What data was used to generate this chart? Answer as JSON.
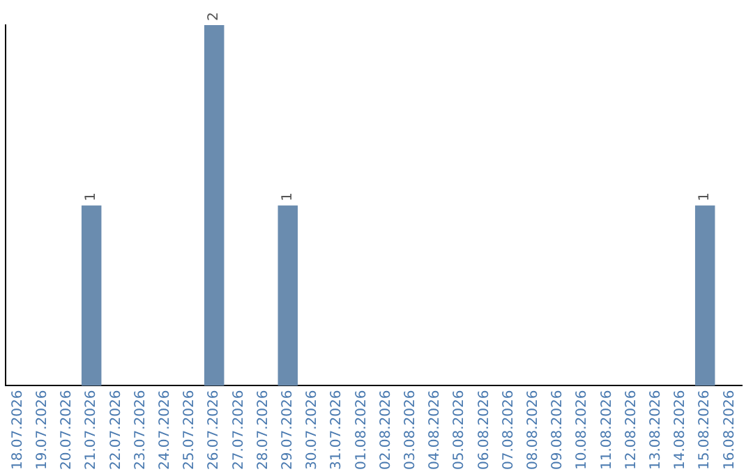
{
  "chart_data": {
    "type": "bar",
    "categories": [
      "18.07.2026",
      "19.07.2026",
      "20.07.2026",
      "21.07.2026",
      "22.07.2026",
      "23.07.2026",
      "24.07.2026",
      "25.07.2026",
      "26.07.2026",
      "27.07.2026",
      "28.07.2026",
      "29.07.2026",
      "30.07.2026",
      "31.07.2026",
      "01.08.2026",
      "02.08.2026",
      "03.08.2026",
      "04.08.2026",
      "05.08.2026",
      "06.08.2026",
      "07.08.2026",
      "08.08.2026",
      "09.08.2026",
      "10.08.2026",
      "11.08.2026",
      "12.08.2026",
      "13.08.2026",
      "14.08.2026",
      "15.08.2026",
      "16.08.2026"
    ],
    "values": [
      0,
      0,
      0,
      1,
      0,
      0,
      0,
      0,
      2,
      0,
      0,
      1,
      0,
      0,
      0,
      0,
      0,
      0,
      0,
      0,
      0,
      0,
      0,
      0,
      0,
      0,
      0,
      0,
      1,
      0
    ],
    "value_labels": [
      null,
      null,
      null,
      "1",
      null,
      null,
      null,
      null,
      "2",
      null,
      null,
      "1",
      null,
      null,
      null,
      null,
      null,
      null,
      null,
      null,
      null,
      null,
      null,
      null,
      null,
      null,
      null,
      null,
      "1",
      null
    ],
    "color": "#6a8caf",
    "tick_labels": "x"
  }
}
